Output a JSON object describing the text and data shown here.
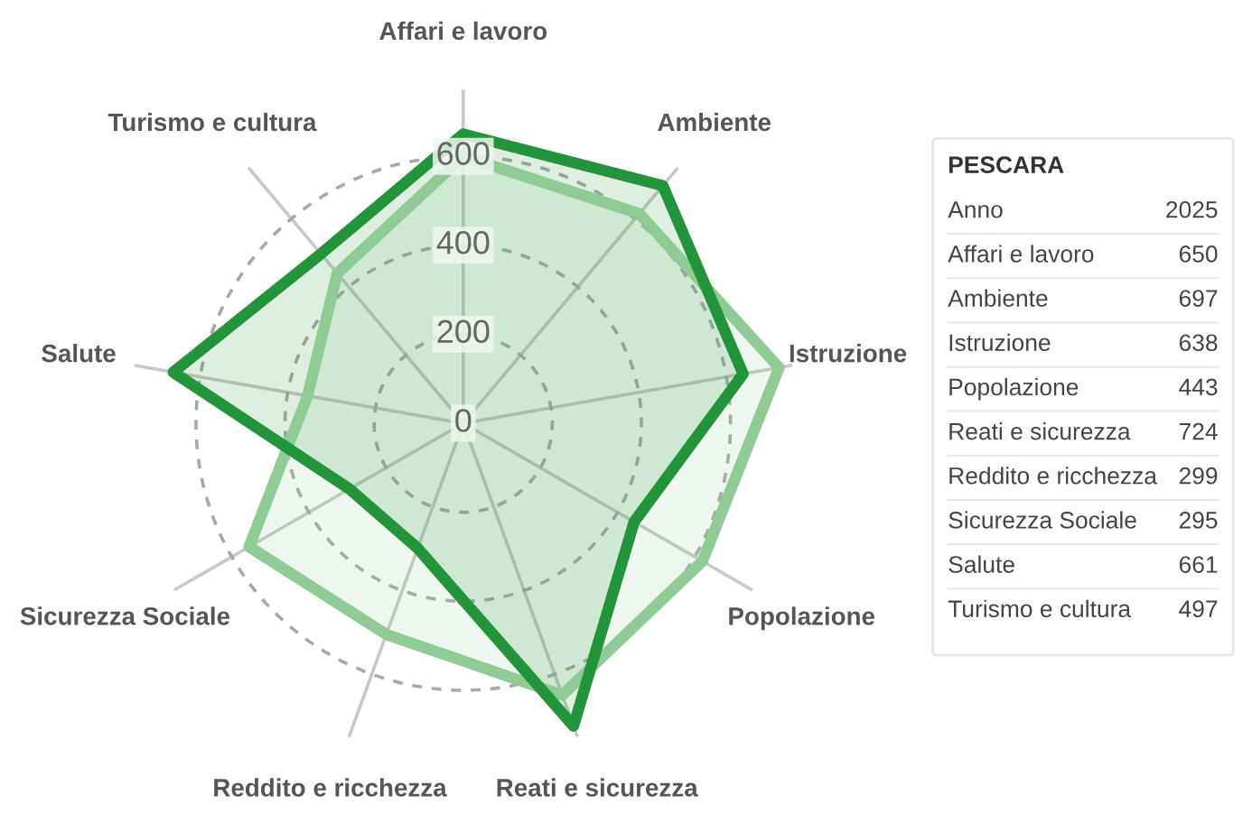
{
  "chart_data": {
    "type": "radar",
    "categories": [
      "Affari e lavoro",
      "Ambiente",
      "Istruzione",
      "Popolazione",
      "Reati e sicurezza",
      "Reddito e ricchezza",
      "Sicurezza Sociale",
      "Salute",
      "Turismo e cultura"
    ],
    "series": [
      {
        "color": "#8fcb94",
        "values": [
          600,
          615,
          720,
          620,
          650,
          505,
          555,
          355,
          440
        ]
      },
      {
        "color": "#22943a",
        "values": [
          650,
          697,
          638,
          443,
          724,
          299,
          295,
          661,
          497
        ]
      }
    ],
    "ylim": [
      0,
      750
    ],
    "yticks": [
      0,
      200,
      400,
      600
    ],
    "grid": true,
    "legend": false,
    "annotations": [
      "PESCARA",
      "Anno",
      "2025",
      "Affari e lavoro",
      "650",
      "Ambiente",
      "697",
      "Istruzione",
      "638",
      "Popolazione",
      "443",
      "Reati e sicurezza",
      "724",
      "Reddito e ricchezza",
      "299",
      "Sicurezza Sociale",
      "295",
      "Salute",
      "661",
      "Turismo e cultura",
      "497"
    ]
  }
}
